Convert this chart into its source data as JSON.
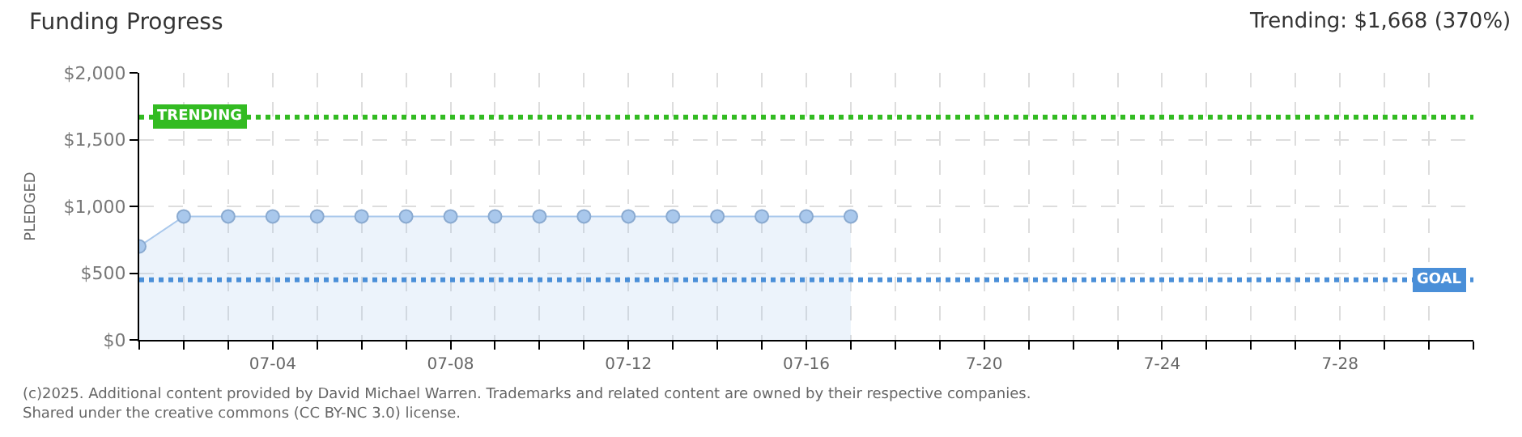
{
  "chart_data": {
    "type": "area",
    "title": "Funding Progress",
    "subtitle": "Trending: $1,668 (370%)",
    "ylabel": "PLEDGED",
    "x": [
      "2025-07-01",
      "2025-07-02",
      "2025-07-03",
      "2025-07-04",
      "2025-07-05",
      "2025-07-06",
      "2025-07-07",
      "2025-07-08",
      "2025-07-09",
      "2025-07-10",
      "2025-07-11",
      "2025-07-12",
      "2025-07-13",
      "2025-07-14",
      "2025-07-15",
      "2025-07-16",
      "2025-07-17"
    ],
    "series": [
      {
        "color": "#a9c8ec",
        "values": [
          700,
          925,
          925,
          925,
          925,
          925,
          925,
          925,
          925,
          925,
          925,
          925,
          925,
          925,
          925,
          925,
          925
        ]
      }
    ],
    "marker": "circle",
    "xlim": [
      "2025-07-01",
      "2025-07-31"
    ],
    "xticks": [
      {
        "value": "2025-07-01",
        "label": null
      },
      {
        "value": "2025-07-02",
        "label": null
      },
      {
        "value": "2025-07-03",
        "label": null
      },
      {
        "value": "2025-07-04",
        "label": "07-04"
      },
      {
        "value": "2025-07-05",
        "label": null
      },
      {
        "value": "2025-07-06",
        "label": null
      },
      {
        "value": "2025-07-07",
        "label": null
      },
      {
        "value": "2025-07-08",
        "label": "07-08"
      },
      {
        "value": "2025-07-09",
        "label": null
      },
      {
        "value": "2025-07-10",
        "label": null
      },
      {
        "value": "2025-07-11",
        "label": null
      },
      {
        "value": "2025-07-12",
        "label": "07-12"
      },
      {
        "value": "2025-07-13",
        "label": null
      },
      {
        "value": "2025-07-14",
        "label": null
      },
      {
        "value": "2025-07-15",
        "label": null
      },
      {
        "value": "2025-07-16",
        "label": "07-16"
      },
      {
        "value": "2025-07-17",
        "label": null
      },
      {
        "value": "2025-07-18",
        "label": null
      },
      {
        "value": "2025-07-19",
        "label": null
      },
      {
        "value": "2025-07-20",
        "label": "7-20"
      },
      {
        "value": "2025-07-21",
        "label": null
      },
      {
        "value": "2025-07-22",
        "label": null
      },
      {
        "value": "2025-07-23",
        "label": null
      },
      {
        "value": "2025-07-24",
        "label": "7-24"
      },
      {
        "value": "2025-07-25",
        "label": null
      },
      {
        "value": "2025-07-26",
        "label": null
      },
      {
        "value": "2025-07-27",
        "label": null
      },
      {
        "value": "2025-07-28",
        "label": "7-28"
      },
      {
        "value": "2025-07-29",
        "label": null
      },
      {
        "value": "2025-07-30",
        "label": null
      },
      {
        "value": "2025-07-31",
        "label": null
      }
    ],
    "ylim": [
      0,
      2000
    ],
    "yticks": [
      {
        "value": 0,
        "label": "$0"
      },
      {
        "value": 500,
        "label": "$500"
      },
      {
        "value": 1000,
        "label": "$1,000"
      },
      {
        "value": 1500,
        "label": "$1,500"
      },
      {
        "value": 2000,
        "label": "$2,000"
      }
    ],
    "grid": true,
    "ref_lines": [
      {
        "axis": "y",
        "value": 1668,
        "label": "TRENDING",
        "color": "#33bb22",
        "line_style": "dotted"
      },
      {
        "axis": "y",
        "value": 450,
        "label": "GOAL",
        "color": "#4a8fd8",
        "line_style": "dotted"
      }
    ],
    "annotations": [
      "(c)2025. Additional content provided by David Michael Warren. Trademarks and related content are owned by their respective companies.",
      "Shared under the creative commons (CC BY-NC 3.0) license."
    ]
  }
}
